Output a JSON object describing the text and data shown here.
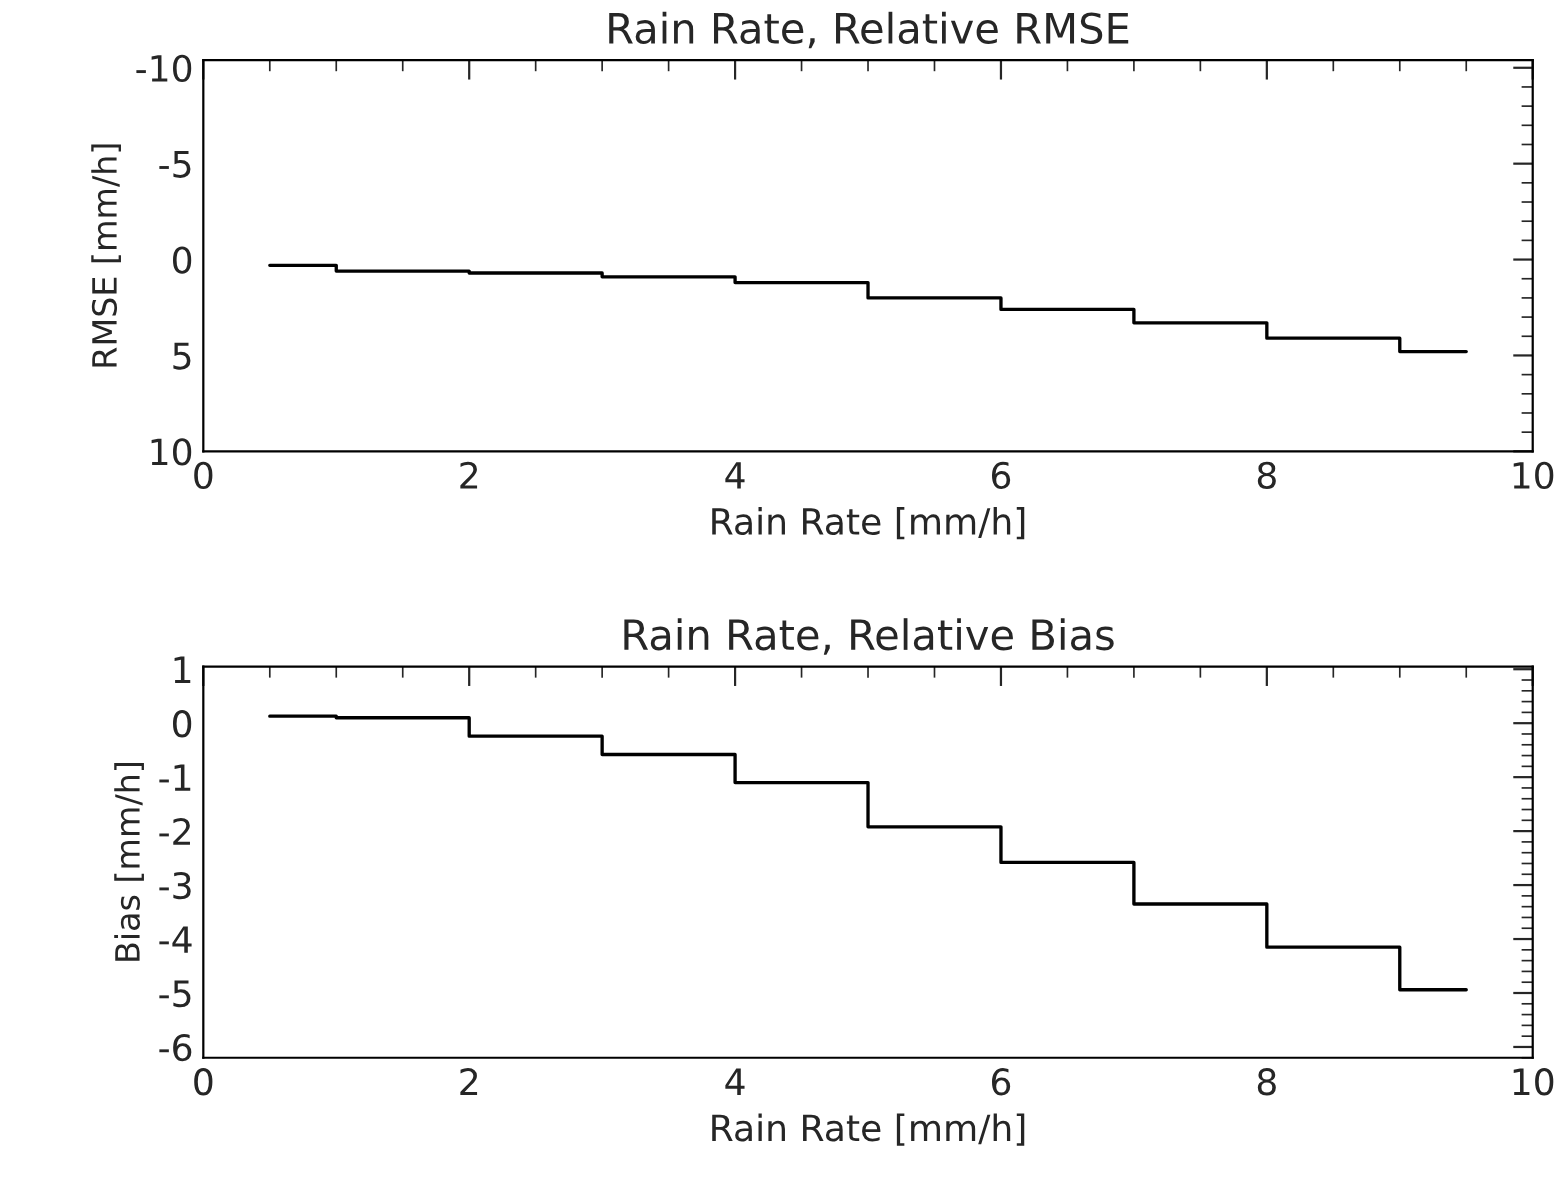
{
  "chart_data": [
    {
      "type": "step",
      "title": "Rain Rate, Relative RMSE",
      "xlabel": "Rain Rate [mm/h]",
      "ylabel": "RMSE [mm/h]",
      "x": [
        0.5,
        1,
        2,
        3,
        4,
        5,
        6,
        7,
        8,
        9,
        9.5
      ],
      "series": [
        {
          "color": "#000000",
          "values": [
            0.3,
            0.6,
            0.7,
            0.9,
            1.2,
            2.0,
            2.6,
            3.3,
            4.1,
            4.8,
            4.8
          ]
        }
      ],
      "xlim": [
        0,
        10
      ],
      "xticks": [
        0,
        2,
        4,
        6,
        8,
        10
      ],
      "ylim": [
        10,
        -10.4
      ],
      "yticks": [
        -10,
        -5,
        0,
        5,
        10
      ],
      "grid": false,
      "legend": false
    },
    {
      "type": "step",
      "title": "Rain Rate, Relative Bias",
      "xlabel": "Rain Rate [mm/h]",
      "ylabel": "Bias [mm/h]",
      "x": [
        0.5,
        1,
        2,
        3,
        4,
        5,
        6,
        7,
        8,
        9,
        9.5
      ],
      "series": [
        {
          "color": "#000000",
          "values": [
            0.13,
            0.1,
            -0.24,
            -0.58,
            -1.1,
            -1.92,
            -2.58,
            -3.35,
            -4.15,
            -4.94,
            -4.94
          ]
        }
      ],
      "xlim": [
        0,
        10
      ],
      "xticks": [
        0,
        2,
        4,
        6,
        8,
        10
      ],
      "ylim": [
        -6.2,
        1.05
      ],
      "yticks": [
        -6,
        -5,
        -4,
        -3,
        -2,
        -1,
        0,
        1
      ],
      "grid": false,
      "legend": false
    }
  ]
}
